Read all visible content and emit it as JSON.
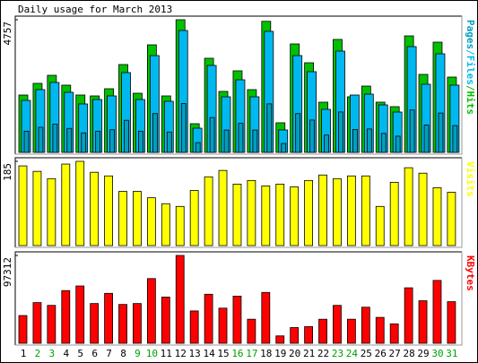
{
  "chart_data": [
    {
      "type": "bar",
      "title": "Daily usage for March 2013",
      "ylim": [
        0,
        4757
      ],
      "yticks": [
        4757
      ],
      "legend_separator": "/",
      "series": [
        {
          "name": "Pages",
          "color": "#00a0c0",
          "values": [
            760,
            900,
            1010,
            860,
            700,
            760,
            810,
            1150,
            760,
            1390,
            730,
            1750,
            350,
            1250,
            800,
            1040,
            800,
            1740,
            320,
            1390,
            1160,
            620,
            1450,
            820,
            840,
            680,
            580,
            1520,
            980,
            1410,
            960
          ]
        },
        {
          "name": "Files",
          "color": "#00b8f0",
          "values": [
            1864,
            2250,
            2507,
            2153,
            1736,
            1896,
            2025,
            2861,
            1896,
            3471,
            1832,
            4371,
            868,
            3118,
            1993,
            2603,
            1993,
            4339,
            804,
            3471,
            2893,
            1543,
            3632,
            2057,
            2089,
            1703,
            1446,
            3793,
            2443,
            3535,
            2411
          ]
        },
        {
          "name": "Hits",
          "color": "#00c000",
          "values": [
            2057,
            2475,
            2764,
            2411,
            2057,
            2025,
            2282,
            3150,
            2121,
            3857,
            2025,
            4757,
            1028,
            3375,
            2186,
            2925,
            2250,
            4700,
            1061,
            3889,
            3214,
            1800,
            4050,
            1993,
            2378,
            1800,
            1639,
            4178,
            2796,
            3953,
            2700
          ]
        }
      ]
    },
    {
      "type": "bar",
      "ylim": [
        0,
        185
      ],
      "yticks": [
        185
      ],
      "series": [
        {
          "name": "Visits",
          "color": "#ffff00",
          "values": [
            175,
            163,
            147,
            179,
            185,
            161,
            153,
            119,
            119,
            105,
            92,
            86,
            121,
            151,
            165,
            135,
            143,
            131,
            135,
            129,
            143,
            155,
            147,
            153,
            153,
            86,
            139,
            171,
            159,
            127,
            117
          ]
        }
      ]
    },
    {
      "type": "bar",
      "ylim": [
        0,
        97312
      ],
      "yticks": [
        97312
      ],
      "categories": [
        "1",
        "2",
        "3",
        "4",
        "5",
        "6",
        "7",
        "8",
        "9",
        "10",
        "11",
        "12",
        "13",
        "14",
        "15",
        "16",
        "17",
        "18",
        "19",
        "20",
        "21",
        "22",
        "23",
        "24",
        "25",
        "26",
        "27",
        "28",
        "29",
        "30",
        "31"
      ],
      "highlight": [
        "2",
        "3",
        "9",
        "10",
        "16",
        "17",
        "23",
        "24",
        "30",
        "31"
      ],
      "highlight_color": "#00a000",
      "series": [
        {
          "name": "KBytes",
          "color": "#ff0000",
          "values": [
            30729,
            45070,
            41997,
            58385,
            63507,
            44046,
            55313,
            43021,
            44046,
            71702,
            51216,
            97312,
            35851,
            54289,
            38924,
            52240,
            26632,
            56337,
            8195,
            17414,
            18438,
            26632,
            41997,
            26632,
            39949,
            28681,
            21511,
            61459,
            47119,
            69654,
            46094
          ]
        }
      ]
    }
  ]
}
